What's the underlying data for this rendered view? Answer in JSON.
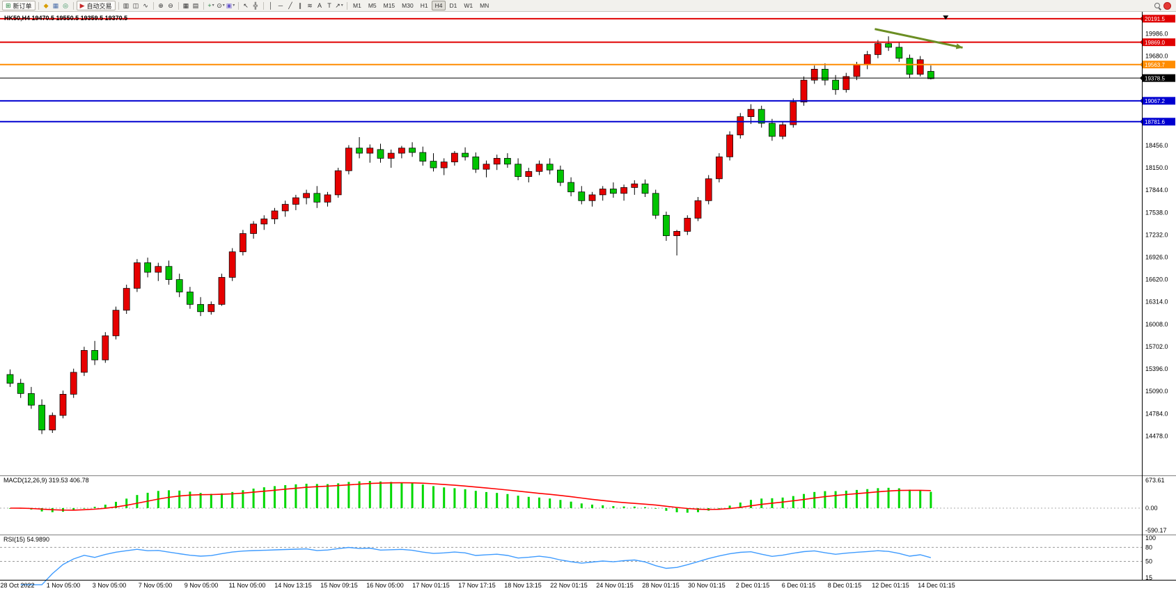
{
  "toolbar": {
    "timeframes": {
      "labels": [
        "M1",
        "M5",
        "M15",
        "M30",
        "H1",
        "H4",
        "D1",
        "W1",
        "MN"
      ],
      "active": "H4"
    },
    "groups": [
      {
        "name": "orders",
        "items": [
          {
            "kind": "labeled",
            "name": "new-order-button",
            "glyph": "⊞",
            "glyph_color": "#1a7f37",
            "label": "新订单"
          }
        ]
      },
      {
        "name": "panels",
        "items": [
          {
            "kind": "icon",
            "name": "market-watch-icon",
            "glyph": "◆",
            "color": "#d89e00"
          },
          {
            "kind": "icon",
            "name": "data-window-icon",
            "glyph": "▦",
            "color": "#4a6ea9"
          },
          {
            "kind": "icon",
            "name": "navigator-icon",
            "glyph": "◎",
            "color": "#2e8b57"
          }
        ]
      },
      {
        "name": "trading",
        "items": [
          {
            "kind": "labeled",
            "name": "auto-trading-button",
            "glyph": "▶",
            "glyph_color": "#c62828",
            "label": "自动交易"
          }
        ]
      },
      {
        "name": "chart-types",
        "items": [
          {
            "kind": "icon",
            "name": "bar-chart-icon",
            "glyph": "▥",
            "color": "#333333"
          },
          {
            "kind": "icon",
            "name": "candlestick-chart-icon",
            "glyph": "◫",
            "color": "#333333"
          },
          {
            "kind": "icon",
            "name": "line-chart-icon",
            "glyph": "∿",
            "color": "#333333"
          }
        ]
      },
      {
        "name": "zoom",
        "items": [
          {
            "kind": "icon",
            "name": "zoom-in-icon",
            "glyph": "⊕",
            "color": "#333333"
          },
          {
            "kind": "icon",
            "name": "zoom-out-icon",
            "glyph": "⊖",
            "color": "#333333"
          }
        ]
      },
      {
        "name": "windows",
        "items": [
          {
            "kind": "icon",
            "name": "tile-windows-icon",
            "glyph": "▦",
            "color": "#333333"
          },
          {
            "kind": "icon",
            "name": "auto-arrange-icon",
            "glyph": "▤",
            "color": "#333333"
          }
        ]
      },
      {
        "name": "indicators",
        "items": [
          {
            "kind": "icon",
            "name": "add-indicator-icon",
            "glyph": "+",
            "color": "#1a7f37",
            "caret": true
          },
          {
            "kind": "icon",
            "name": "periods-icon",
            "glyph": "⊙",
            "color": "#333333",
            "caret": true
          },
          {
            "kind": "icon",
            "name": "templates-icon",
            "glyph": "▣",
            "color": "#6a5acd",
            "caret": true
          }
        ]
      },
      {
        "name": "cursor-tools",
        "items": [
          {
            "kind": "icon",
            "name": "cursor-icon",
            "glyph": "↖",
            "color": "#333333"
          },
          {
            "kind": "icon",
            "name": "crosshair-icon",
            "glyph": "╬",
            "color": "#333333"
          }
        ]
      },
      {
        "name": "draw-tools",
        "items": [
          {
            "kind": "icon",
            "name": "vertical-line-icon",
            "glyph": "│",
            "color": "#333333"
          },
          {
            "kind": "icon",
            "name": "horizontal-line-icon",
            "glyph": "─",
            "color": "#333333"
          },
          {
            "kind": "icon",
            "name": "trendline-icon",
            "glyph": "╱",
            "color": "#333333"
          },
          {
            "kind": "icon",
            "name": "channel-icon",
            "glyph": "∥",
            "color": "#333333"
          },
          {
            "kind": "icon",
            "name": "fibonacci-icon",
            "glyph": "≋",
            "color": "#333333"
          },
          {
            "kind": "icon",
            "name": "text-icon",
            "glyph": "A",
            "color": "#333333"
          },
          {
            "kind": "icon",
            "name": "text-label-icon",
            "glyph": "T",
            "color": "#333333"
          },
          {
            "kind": "icon",
            "name": "shapes-icon",
            "glyph": "↗",
            "color": "#333333",
            "caret": true
          }
        ]
      },
      {
        "name": "timeframes",
        "tf": true,
        "items": []
      }
    ],
    "right": [
      {
        "kind": "search",
        "name": "search-icon"
      },
      {
        "kind": "record",
        "name": "record-icon"
      }
    ]
  },
  "chart": {
    "title": "HK50,H4  19470.5 19550.5 19359.5 19370.5",
    "macd_label": "MACD(12,26,9) 319.53 406.78",
    "rsi_label": "RSI(15) 54.9890"
  },
  "chart_data": {
    "type": "candlestick",
    "symbol": "HK50",
    "timeframe": "H4",
    "colors": {
      "bull": "#E60000",
      "bear": "#00C400",
      "outline": "#000000",
      "macd_hist": "#00D800",
      "macd_signal": "#FF0000",
      "rsi_line": "#3E9BFF",
      "level": "#999999"
    },
    "y_axis_labels": [
      "19986.0",
      "19680.0",
      "19374.0",
      "19068.0",
      "18762.0",
      "18456.0",
      "18150.0",
      "17844.0",
      "17538.0",
      "17232.0",
      "16926.0",
      "16620.0",
      "16314.0",
      "16008.0",
      "15702.0",
      "15396.0",
      "15090.0",
      "14784.0",
      "14478.0"
    ],
    "price_lines": [
      {
        "label": "20191.5",
        "price": 20191.5,
        "color": "#E00000",
        "width": 2
      },
      {
        "label": "19869.0",
        "price": 19869.0,
        "color": "#E00000",
        "width": 2
      },
      {
        "label": "19563.7",
        "price": 19563.7,
        "color": "#FF8C00",
        "width": 2
      },
      {
        "label": "19378.5",
        "price": 19378.5,
        "color": "#000000",
        "width": 1
      },
      {
        "label": "19067.2",
        "price": 19067.2,
        "color": "#0000D0",
        "width": 2
      },
      {
        "label": "18781.6",
        "price": 18781.6,
        "color": "#0000D0",
        "width": 2
      }
    ],
    "x_labels": [
      "28 Oct 2022",
      "1 Nov 05:00",
      "3 Nov 05:00",
      "7 Nov 05:00",
      "9 Nov 05:00",
      "11 Nov 05:00",
      "14 Nov 13:15",
      "15 Nov 09:15",
      "16 Nov 05:00",
      "17 Nov 01:15",
      "17 Nov 17:15",
      "18 Nov 13:15",
      "22 Nov 01:15",
      "24 Nov 01:15",
      "28 Nov 01:15",
      "30 Nov 01:15",
      "2 Dec 01:15",
      "6 Dec 01:15",
      "8 Dec 01:15",
      "12 Dec 01:15",
      "14 Dec 01:15"
    ],
    "ohlc": [
      [
        15320,
        15390,
        15150,
        15200
      ],
      [
        15200,
        15260,
        15000,
        15060
      ],
      [
        15060,
        15150,
        14850,
        14900
      ],
      [
        14900,
        14980,
        14505,
        14560
      ],
      [
        14560,
        14800,
        14520,
        14760
      ],
      [
        14760,
        15100,
        14720,
        15050
      ],
      [
        15050,
        15400,
        15000,
        15350
      ],
      [
        15350,
        15700,
        15300,
        15650
      ],
      [
        15650,
        15780,
        15450,
        15520
      ],
      [
        15520,
        15900,
        15480,
        15850
      ],
      [
        15850,
        16250,
        15800,
        16200
      ],
      [
        16200,
        16550,
        16150,
        16500
      ],
      [
        16500,
        16900,
        16450,
        16850
      ],
      [
        16850,
        16920,
        16650,
        16720
      ],
      [
        16720,
        16850,
        16600,
        16800
      ],
      [
        16800,
        16880,
        16550,
        16620
      ],
      [
        16620,
        16700,
        16380,
        16450
      ],
      [
        16450,
        16520,
        16220,
        16280
      ],
      [
        16280,
        16380,
        16120,
        16180
      ],
      [
        16180,
        16320,
        16140,
        16280
      ],
      [
        16280,
        16700,
        16260,
        16650
      ],
      [
        16650,
        17050,
        16600,
        17000
      ],
      [
        17000,
        17300,
        16950,
        17250
      ],
      [
        17250,
        17420,
        17180,
        17380
      ],
      [
        17380,
        17500,
        17300,
        17450
      ],
      [
        17450,
        17600,
        17380,
        17560
      ],
      [
        17560,
        17700,
        17480,
        17650
      ],
      [
        17650,
        17780,
        17570,
        17740
      ],
      [
        17740,
        17850,
        17650,
        17800
      ],
      [
        17800,
        17900,
        17600,
        17680
      ],
      [
        17680,
        17820,
        17620,
        17780
      ],
      [
        17780,
        18150,
        17740,
        18110
      ],
      [
        18110,
        18460,
        18060,
        18420
      ],
      [
        18420,
        18570,
        18280,
        18350
      ],
      [
        18350,
        18470,
        18220,
        18420
      ],
      [
        18400,
        18480,
        18220,
        18280
      ],
      [
        18280,
        18400,
        18150,
        18350
      ],
      [
        18350,
        18450,
        18280,
        18420
      ],
      [
        18420,
        18500,
        18300,
        18360
      ],
      [
        18360,
        18440,
        18180,
        18240
      ],
      [
        18240,
        18350,
        18100,
        18150
      ],
      [
        18150,
        18280,
        18050,
        18230
      ],
      [
        18230,
        18380,
        18180,
        18350
      ],
      [
        18350,
        18430,
        18250,
        18300
      ],
      [
        18300,
        18360,
        18080,
        18130
      ],
      [
        18130,
        18250,
        18020,
        18200
      ],
      [
        18200,
        18330,
        18120,
        18280
      ],
      [
        18280,
        18350,
        18150,
        18200
      ],
      [
        18200,
        18280,
        17980,
        18030
      ],
      [
        18030,
        18150,
        17950,
        18100
      ],
      [
        18100,
        18250,
        18050,
        18200
      ],
      [
        18200,
        18280,
        18060,
        18120
      ],
      [
        18120,
        18180,
        17900,
        17950
      ],
      [
        17950,
        18020,
        17760,
        17820
      ],
      [
        17820,
        17900,
        17650,
        17700
      ],
      [
        17700,
        17820,
        17620,
        17780
      ],
      [
        17780,
        17900,
        17700,
        17860
      ],
      [
        17860,
        17950,
        17740,
        17800
      ],
      [
        17800,
        17920,
        17700,
        17880
      ],
      [
        17880,
        17980,
        17780,
        17930
      ],
      [
        17930,
        17990,
        17750,
        17800
      ],
      [
        17800,
        17850,
        17450,
        17500
      ],
      [
        17500,
        17550,
        17150,
        17220
      ],
      [
        17220,
        17300,
        16950,
        17280
      ],
      [
        17280,
        17500,
        17230,
        17460
      ],
      [
        17460,
        17750,
        17420,
        17700
      ],
      [
        17700,
        18050,
        17650,
        18000
      ],
      [
        18000,
        18350,
        17950,
        18300
      ],
      [
        18300,
        18650,
        18250,
        18600
      ],
      [
        18600,
        18900,
        18550,
        18850
      ],
      [
        18850,
        19020,
        18750,
        18950
      ],
      [
        18950,
        19000,
        18700,
        18760
      ],
      [
        18760,
        18820,
        18520,
        18580
      ],
      [
        18580,
        18780,
        18540,
        18740
      ],
      [
        18740,
        19100,
        18700,
        19050
      ],
      [
        19050,
        19400,
        19000,
        19350
      ],
      [
        19350,
        19550,
        19300,
        19500
      ],
      [
        19500,
        19580,
        19280,
        19350
      ],
      [
        19350,
        19420,
        19150,
        19220
      ],
      [
        19220,
        19450,
        19180,
        19400
      ],
      [
        19400,
        19600,
        19350,
        19560
      ],
      [
        19560,
        19750,
        19500,
        19700
      ],
      [
        19700,
        19900,
        19650,
        19850
      ],
      [
        19850,
        19950,
        19750,
        19800
      ],
      [
        19800,
        19870,
        19600,
        19650
      ],
      [
        19650,
        19700,
        19380,
        19430
      ],
      [
        19430,
        19680,
        19400,
        19630
      ],
      [
        19470.5,
        19550.5,
        19359.5,
        19370.5
      ]
    ],
    "indicators": [
      {
        "type": "MACD",
        "params": [
          12,
          26,
          9
        ],
        "axis_labels": [
          "673.61",
          "0.00",
          "-590.17"
        ]
      },
      {
        "type": "RSI",
        "params": [
          15
        ],
        "axis_labels": [
          "100",
          "80",
          "50",
          "15"
        ],
        "levels": [
          80,
          50
        ]
      }
    ],
    "annotations": [
      {
        "type": "arrow",
        "from": {
          "index": 82.0,
          "price": 20050
        },
        "to": {
          "index": 90.3,
          "price": 19795
        },
        "color": "#6B8E23",
        "width": 3
      },
      {
        "type": "triangle-down",
        "at": {
          "index": 88.7,
          "price": 20235
        },
        "color": "#000000"
      }
    ]
  }
}
